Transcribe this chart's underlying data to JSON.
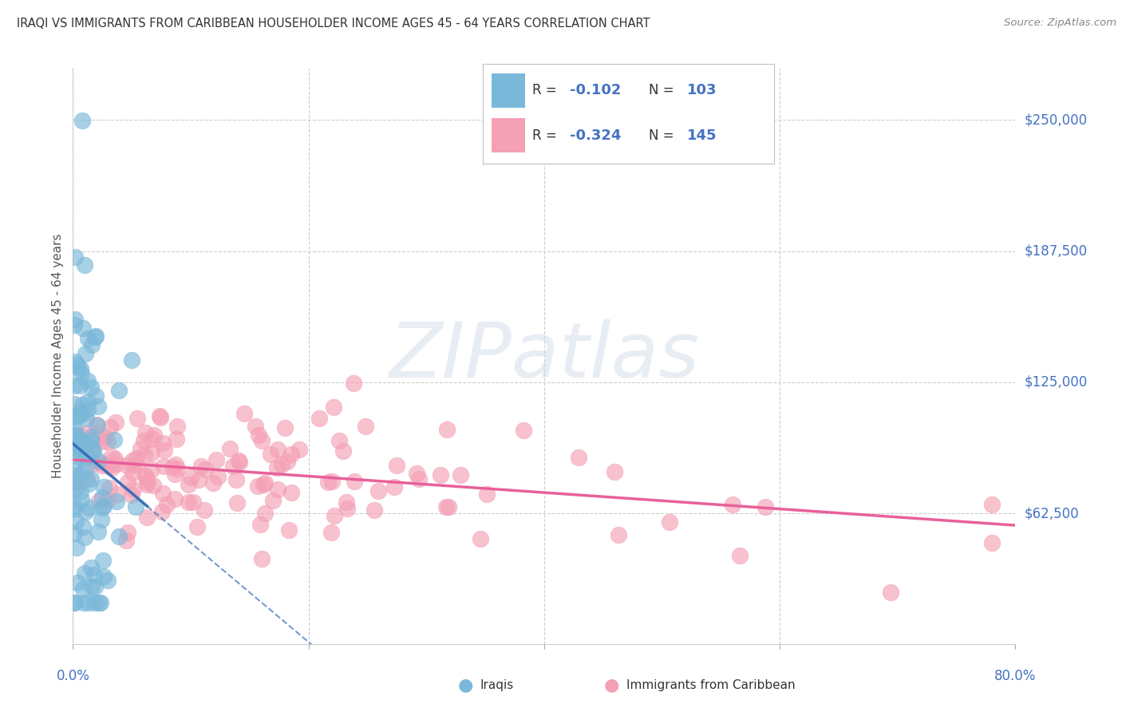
{
  "title": "IRAQI VS IMMIGRANTS FROM CARIBBEAN HOUSEHOLDER INCOME AGES 45 - 64 YEARS CORRELATION CHART",
  "source": "Source: ZipAtlas.com",
  "ylabel": "Householder Income Ages 45 - 64 years",
  "ytick_labels": [
    "$62,500",
    "$125,000",
    "$187,500",
    "$250,000"
  ],
  "ytick_values": [
    62500,
    125000,
    187500,
    250000
  ],
  "ymin": 0,
  "ymax": 275000,
  "xmin": 0.0,
  "xmax": 0.8,
  "color_iraqis": "#7ab8d9",
  "color_caribbean": "#f4a0b5",
  "trendline_iraqis_color": "#3a6fba",
  "trendline_caribbean_color": "#e8609a",
  "R_iraqis_str": "-0.102",
  "N_iraqis_str": "103",
  "R_caribbean_str": "-0.324",
  "N_caribbean_str": "145",
  "R_iraqis": -0.102,
  "N_iraqis": 103,
  "R_caribbean": -0.324,
  "N_caribbean": 145,
  "bottom_legend_iraqis": "Iraqis",
  "bottom_legend_caribbean": "Immigrants from Caribbean",
  "watermark_1": "ZIP",
  "watermark_2": "atlas",
  "label_color": "#4472c4",
  "text_dark": "#333333",
  "text_gray": "#888888"
}
